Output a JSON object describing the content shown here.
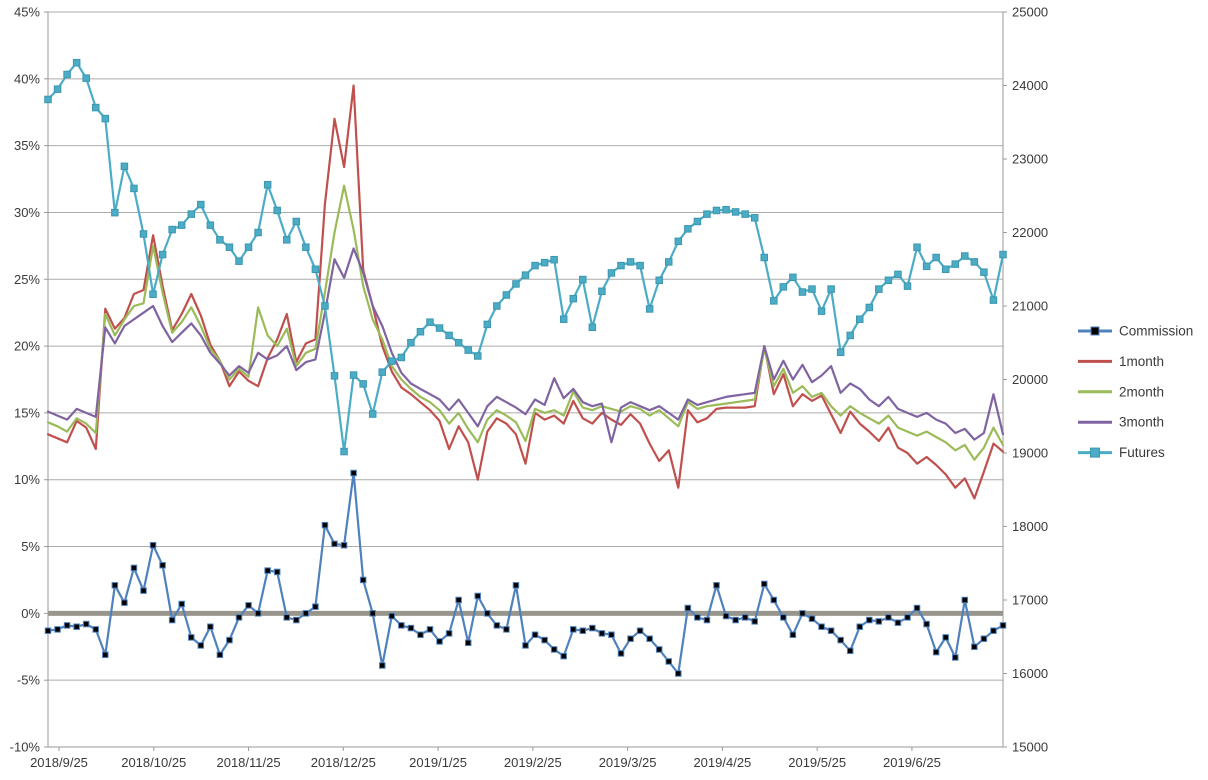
{
  "chart_data": {
    "type": "line",
    "title": "",
    "grid_on": true,
    "grid_color": "#ABABAB",
    "axis_line_color": "#9A9A9A",
    "zero_band_color": "#98968C",
    "text_color": "#3a3a3a",
    "legend_position": "right",
    "x_labels": [
      "2018/9/25",
      "2018/10/25",
      "2018/11/25",
      "2018/12/25",
      "2019/1/25",
      "2019/2/25",
      "2019/3/25",
      "2019/4/25",
      "2019/5/25",
      "2019/6/25"
    ],
    "left_axis": {
      "unit": "%",
      "min": -10,
      "max": 45,
      "step": 5,
      "ticks": [
        "45%",
        "40%",
        "35%",
        "30%",
        "25%",
        "20%",
        "15%",
        "10%",
        "5%",
        "0%",
        "-5%",
        "-10%"
      ]
    },
    "right_axis": {
      "min": 15000,
      "max": 25000,
      "step": 1000,
      "ticks": [
        "25000",
        "24000",
        "23000",
        "22000",
        "21000",
        "20000",
        "19000",
        "18000",
        "17000",
        "16000",
        "15000"
      ]
    },
    "series": [
      {
        "name": "Commission",
        "axis": "left",
        "color": "#4F81BD",
        "marker": "square",
        "marker_color": "#000000",
        "values": [
          -1.3,
          -1.2,
          -0.9,
          -1.0,
          -0.8,
          -1.2,
          -3.1,
          2.1,
          0.8,
          3.4,
          1.7,
          5.1,
          3.6,
          -0.5,
          0.7,
          -1.8,
          -2.4,
          -1.0,
          -3.1,
          -2.0,
          -0.3,
          0.6,
          0.0,
          3.2,
          3.1,
          -0.3,
          -0.5,
          0.0,
          0.5,
          6.6,
          5.2,
          5.1,
          10.5,
          2.5,
          0.0,
          -3.9,
          -0.2,
          -0.9,
          -1.1,
          -1.6,
          -1.2,
          -2.1,
          -1.5,
          1.0,
          -2.2,
          1.3,
          0.0,
          -0.9,
          -1.2,
          2.1,
          -2.4,
          -1.6,
          -2.0,
          -2.7,
          -3.2,
          -1.2,
          -1.3,
          -1.1,
          -1.5,
          -1.6,
          -3.0,
          -1.9,
          -1.3,
          -1.9,
          -2.7,
          -3.6,
          -4.5,
          0.4,
          -0.3,
          -0.5,
          2.1,
          -0.2,
          -0.5,
          -0.3,
          -0.6,
          2.2,
          1.0,
          -0.3,
          -1.6,
          0.0,
          -0.4,
          -1.0,
          -1.3,
          -2.0,
          -2.8,
          -1.0,
          -0.5,
          -0.6,
          -0.3,
          -0.7,
          -0.3,
          0.4,
          -0.8,
          -2.9,
          -1.8,
          -3.3,
          1.0,
          -2.5,
          -1.9,
          -1.3,
          -0.9
        ]
      },
      {
        "name": "1month",
        "axis": "left",
        "color": "#C0504D",
        "marker": "none",
        "values": [
          13.4,
          13.1,
          12.8,
          14.4,
          13.9,
          12.3,
          22.8,
          21.3,
          22.1,
          23.9,
          24.2,
          28.3,
          24.5,
          21.2,
          22.4,
          23.9,
          22.3,
          20.1,
          18.9,
          17.0,
          18.1,
          17.4,
          17.0,
          19.1,
          20.5,
          22.4,
          18.8,
          20.2,
          20.5,
          30.6,
          37.0,
          33.4,
          39.5,
          25.7,
          23.0,
          20.0,
          18.1,
          16.9,
          16.4,
          15.8,
          15.2,
          14.4,
          12.3,
          14.0,
          12.8,
          10.0,
          13.6,
          14.6,
          14.2,
          13.4,
          11.2,
          15.0,
          14.5,
          14.8,
          14.2,
          15.9,
          14.6,
          14.2,
          15.0,
          14.5,
          14.1,
          14.9,
          14.2,
          12.7,
          11.4,
          12.2,
          9.4,
          15.2,
          14.3,
          14.6,
          15.3,
          15.4,
          15.4,
          15.4,
          15.5,
          20.0,
          16.4,
          17.9,
          15.5,
          16.4,
          15.9,
          16.3,
          14.9,
          13.5,
          15.1,
          14.2,
          13.6,
          12.9,
          13.9,
          12.4,
          12.0,
          11.2,
          11.7,
          11.1,
          10.4,
          9.4,
          10.1,
          8.6,
          10.6,
          12.7,
          12.1
        ]
      },
      {
        "name": "2month",
        "axis": "left",
        "color": "#9BBB59",
        "marker": "none",
        "values": [
          14.3,
          14.0,
          13.6,
          14.6,
          14.2,
          13.5,
          22.4,
          20.8,
          22.0,
          23.0,
          23.2,
          27.5,
          24.0,
          21.0,
          21.8,
          22.9,
          21.5,
          19.8,
          18.9,
          17.5,
          18.3,
          17.7,
          22.9,
          20.8,
          20.0,
          21.3,
          18.5,
          19.5,
          19.8,
          24.0,
          28.5,
          32.0,
          28.7,
          24.5,
          22.0,
          20.5,
          18.5,
          17.5,
          16.8,
          16.2,
          15.8,
          15.2,
          14.2,
          15.0,
          13.8,
          12.8,
          14.5,
          15.2,
          14.8,
          14.3,
          12.9,
          15.3,
          15.0,
          15.2,
          14.8,
          16.6,
          15.4,
          15.2,
          15.5,
          15.3,
          15.1,
          15.5,
          15.3,
          14.8,
          15.2,
          14.6,
          14.0,
          15.8,
          15.3,
          15.5,
          15.6,
          15.7,
          15.8,
          15.9,
          16.0,
          19.8,
          17.0,
          18.3,
          16.5,
          17.0,
          16.2,
          16.5,
          15.5,
          14.8,
          15.5,
          15.0,
          14.6,
          14.2,
          14.8,
          13.9,
          13.6,
          13.3,
          13.6,
          13.2,
          12.8,
          12.2,
          12.6,
          11.5,
          12.4,
          13.9,
          12.6
        ]
      },
      {
        "name": "3month",
        "axis": "left",
        "color": "#8064A2",
        "marker": "none",
        "values": [
          15.1,
          14.8,
          14.5,
          15.3,
          15.0,
          14.7,
          21.4,
          20.2,
          21.5,
          22.0,
          22.5,
          23.0,
          21.5,
          20.3,
          21.0,
          21.7,
          20.8,
          19.5,
          18.7,
          17.8,
          18.5,
          18.0,
          19.5,
          19.0,
          19.3,
          20.0,
          18.2,
          18.8,
          19.0,
          22.5,
          26.5,
          25.1,
          27.3,
          25.5,
          23.0,
          21.5,
          19.5,
          18.0,
          17.2,
          16.8,
          16.4,
          16.0,
          15.2,
          16.0,
          15.0,
          14.0,
          15.5,
          16.2,
          15.8,
          15.4,
          14.9,
          16.0,
          15.6,
          17.6,
          16.1,
          16.8,
          15.8,
          15.5,
          15.7,
          12.8,
          15.4,
          15.8,
          15.5,
          15.2,
          15.5,
          15.0,
          14.5,
          16.0,
          15.6,
          15.8,
          16.0,
          16.2,
          16.3,
          16.4,
          16.5,
          20.0,
          17.5,
          18.9,
          17.5,
          18.6,
          17.3,
          17.8,
          18.5,
          16.5,
          17.2,
          16.8,
          16.0,
          15.5,
          16.2,
          15.3,
          15.0,
          14.7,
          15.0,
          14.5,
          14.2,
          13.5,
          13.8,
          13.0,
          13.5,
          16.4,
          13.4
        ]
      },
      {
        "name": "Futures",
        "axis": "right",
        "color": "#4BACC6",
        "marker": "square",
        "marker_color": "#4BACC6",
        "values": [
          23810,
          23950,
          24150,
          24310,
          24100,
          23700,
          23550,
          22270,
          22900,
          22600,
          21980,
          21160,
          21700,
          22040,
          22100,
          22250,
          22380,
          22100,
          21900,
          21800,
          21610,
          21800,
          22000,
          22650,
          22300,
          21900,
          22150,
          21800,
          21500,
          21000,
          20050,
          19020,
          20060,
          19940,
          19530,
          20100,
          20250,
          20300,
          20500,
          20650,
          20780,
          20700,
          20600,
          20500,
          20400,
          20320,
          20750,
          21000,
          21150,
          21300,
          21420,
          21550,
          21590,
          21630,
          20820,
          21100,
          21360,
          20710,
          21200,
          21450,
          21550,
          21600,
          21550,
          20960,
          21350,
          21600,
          21880,
          22050,
          22150,
          22250,
          22300,
          22310,
          22280,
          22250,
          22200,
          21660,
          21070,
          21260,
          21390,
          21190,
          21230,
          20930,
          21230,
          20370,
          20600,
          20820,
          20980,
          21230,
          21350,
          21430,
          21270,
          21800,
          21540,
          21660,
          21500,
          21570,
          21680,
          21600,
          21460,
          21080,
          21700
        ]
      }
    ]
  }
}
